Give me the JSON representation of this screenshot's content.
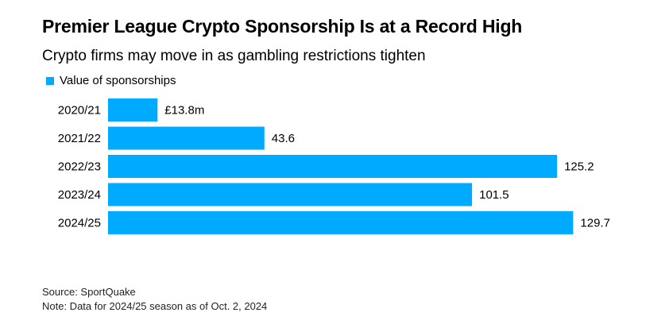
{
  "header": {
    "title": "Premier League Crypto Sponsorship Is at a Record High",
    "subtitle": "Crypto firms may move in as gambling restrictions tighten"
  },
  "legend": {
    "label": "Value of sponsorships",
    "color": "#00aaff"
  },
  "footer": {
    "source": "Source: SportQuake",
    "note": "Note: Data for 2024/25 season as of Oct. 2, 2024"
  },
  "chart_data": {
    "type": "bar",
    "orientation": "horizontal",
    "categories": [
      "2020/21",
      "2021/22",
      "2022/23",
      "2023/24",
      "2024/25"
    ],
    "series": [
      {
        "name": "Value of sponsorships",
        "values": [
          13.8,
          43.6,
          125.2,
          101.5,
          129.7
        ],
        "color": "#00aaff"
      }
    ],
    "value_labels": [
      "£13.8m",
      "43.6",
      "125.2",
      "101.5",
      "129.7"
    ],
    "title": "Premier League Crypto Sponsorship Is at a Record High",
    "subtitle": "Crypto firms may move in as gambling restrictions tighten",
    "xlim": [
      0,
      130
    ],
    "grid": false,
    "legend_position": "top-left"
  }
}
